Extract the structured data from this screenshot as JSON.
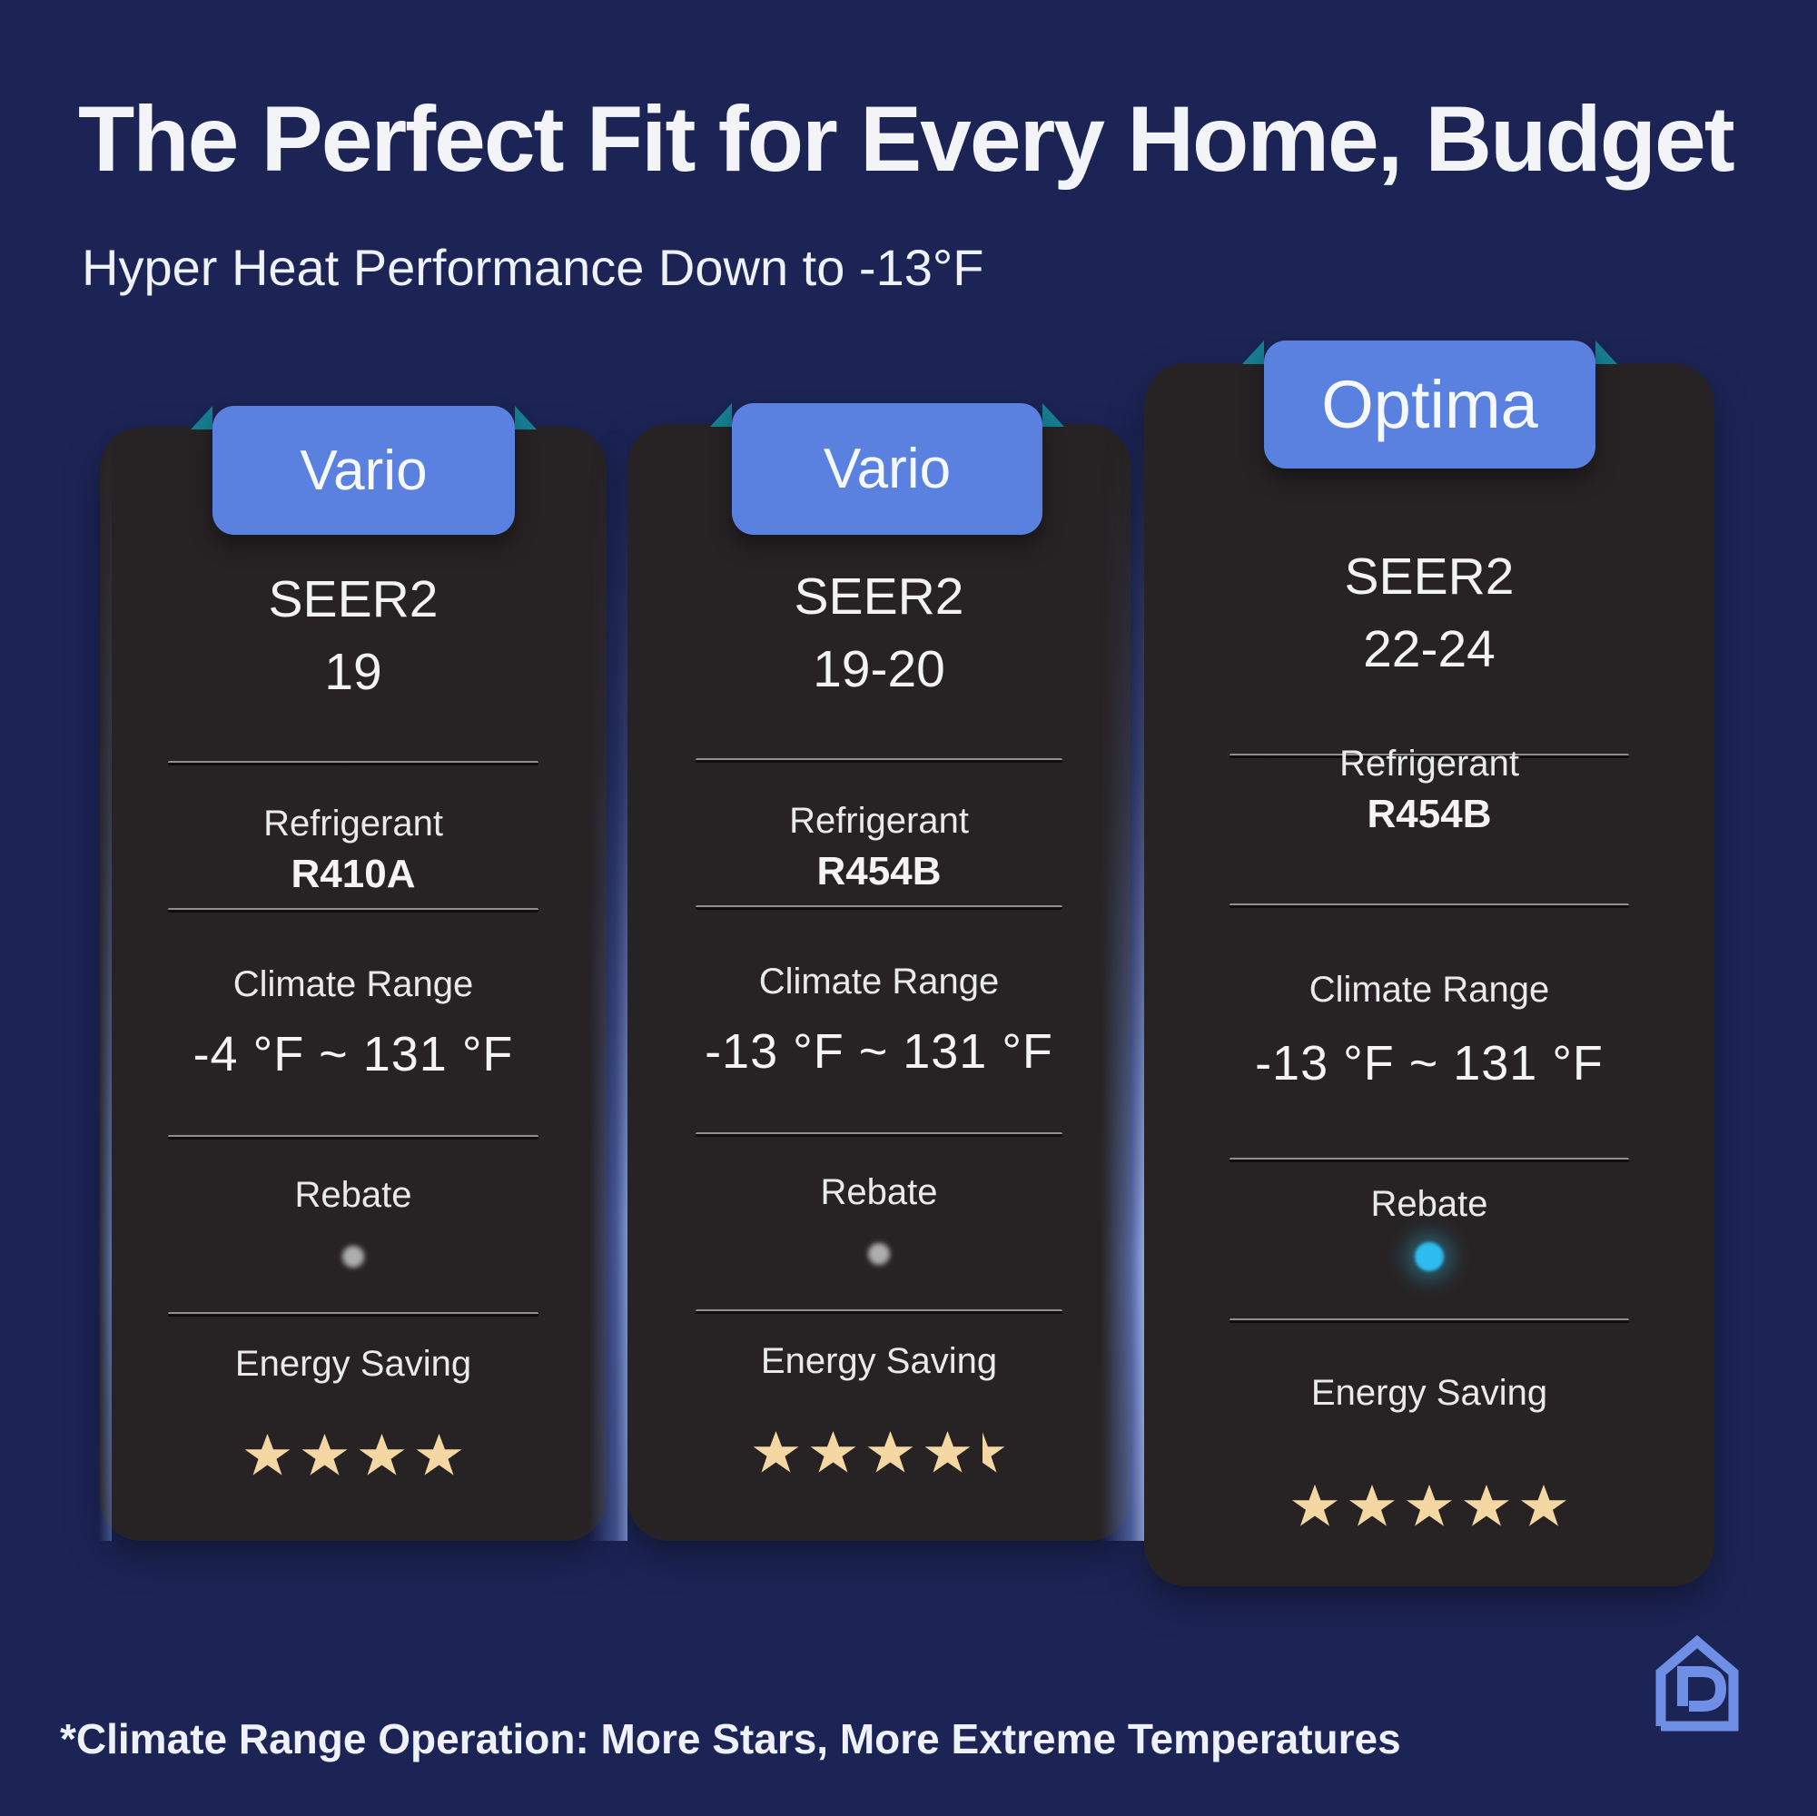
{
  "page": {
    "title": "The Perfect Fit for Every Home, Budget",
    "subtitle": "Hyper Heat Performance Down to -13°F",
    "footnote": "*Climate Range Operation: More Stars, More Extreme Temperatures",
    "background_color": "#1c2455",
    "card_color": "#272324",
    "badge_color": "#5b81e0",
    "ribbon_fold_color": "#157f92",
    "star_color": "#f4d7a2",
    "rebate_active_color": "#2ebcee",
    "rebate_inactive_color": "#adadad",
    "logo_color": "#6f8fe6",
    "logo_icon": "house-d-logo"
  },
  "cards": [
    {
      "badge": "Vario",
      "seer_text": "SEER2\n19",
      "refrigerant_label": "Refrigerant",
      "refrigerant_value": "R410A",
      "climate_label": "Climate Range",
      "climate_value": "-4 °F ~ 131 °F",
      "rebate_label": "Rebate",
      "rebate_available": false,
      "energy_label": "Energy Saving",
      "stars": 4
    },
    {
      "badge": "Vario",
      "seer_text": "SEER2\n19-20",
      "refrigerant_label": "Refrigerant",
      "refrigerant_value": "R454B",
      "climate_label": "Climate Range",
      "climate_value": "-13 °F ~ 131 °F",
      "rebate_label": "Rebate",
      "rebate_available": false,
      "energy_label": "Energy Saving",
      "stars": 4.5
    },
    {
      "badge": "Optima",
      "seer_text": "SEER2\n22-24",
      "refrigerant_label": "Refrigerant",
      "refrigerant_value": "R454B",
      "climate_label": "Climate Range",
      "climate_value": "-13 °F ~ 131 °F",
      "rebate_label": "Rebate",
      "rebate_available": true,
      "energy_label": "Energy Saving",
      "stars": 5
    }
  ]
}
